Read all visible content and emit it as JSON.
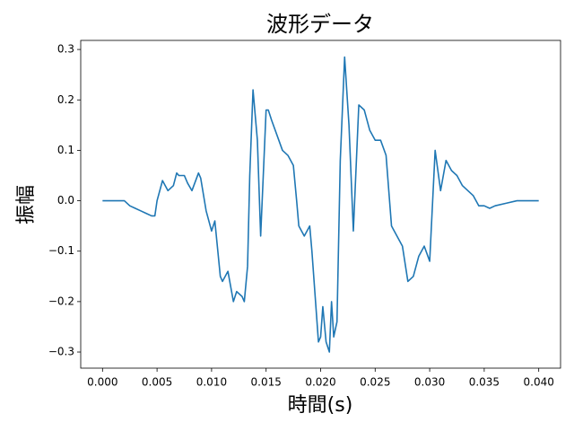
{
  "chart_data": {
    "type": "line",
    "title": "波形データ",
    "xlabel": "時間(s)",
    "ylabel": "振幅",
    "color": "#1f77b4",
    "x": [
      0.0,
      0.002,
      0.0025,
      0.003,
      0.0035,
      0.004,
      0.0045,
      0.0048,
      0.005,
      0.0055,
      0.006,
      0.0065,
      0.0068,
      0.007,
      0.0075,
      0.0078,
      0.0082,
      0.0088,
      0.009,
      0.0095,
      0.01,
      0.0103,
      0.0108,
      0.011,
      0.0115,
      0.012,
      0.0123,
      0.0128,
      0.013,
      0.0133,
      0.0135,
      0.0138,
      0.0142,
      0.0145,
      0.015,
      0.0152,
      0.0155,
      0.016,
      0.0165,
      0.017,
      0.0175,
      0.0178,
      0.018,
      0.0185,
      0.019,
      0.0192,
      0.0195,
      0.0198,
      0.02,
      0.0202,
      0.0205,
      0.0208,
      0.021,
      0.0212,
      0.0215,
      0.0218,
      0.0222,
      0.0226,
      0.023,
      0.0235,
      0.024,
      0.0245,
      0.025,
      0.0255,
      0.026,
      0.0265,
      0.027,
      0.0275,
      0.028,
      0.0285,
      0.029,
      0.0295,
      0.03,
      0.0305,
      0.031,
      0.0315,
      0.032,
      0.0325,
      0.033,
      0.0335,
      0.034,
      0.0345,
      0.035,
      0.0355,
      0.036,
      0.037,
      0.038,
      0.039,
      0.04
    ],
    "values": [
      0.0,
      0.0,
      -0.01,
      -0.015,
      -0.02,
      -0.025,
      -0.03,
      -0.03,
      0.0,
      0.04,
      0.02,
      0.03,
      0.055,
      0.05,
      0.05,
      0.035,
      0.02,
      0.055,
      0.045,
      -0.02,
      -0.06,
      -0.04,
      -0.15,
      -0.16,
      -0.14,
      -0.2,
      -0.18,
      -0.19,
      -0.2,
      -0.13,
      0.05,
      0.22,
      0.12,
      -0.07,
      0.18,
      0.18,
      0.16,
      0.13,
      0.1,
      0.09,
      0.07,
      0.0,
      -0.05,
      -0.07,
      -0.05,
      -0.1,
      -0.19,
      -0.28,
      -0.27,
      -0.21,
      -0.28,
      -0.3,
      -0.2,
      -0.27,
      -0.24,
      0.08,
      0.285,
      0.15,
      -0.06,
      0.19,
      0.18,
      0.14,
      0.12,
      0.12,
      0.09,
      -0.05,
      -0.07,
      -0.09,
      -0.16,
      -0.15,
      -0.11,
      -0.09,
      -0.12,
      0.1,
      0.02,
      0.08,
      0.06,
      0.05,
      0.03,
      0.02,
      0.01,
      -0.01,
      -0.01,
      -0.015,
      -0.01,
      -0.005,
      0.0,
      0.0,
      0.0
    ],
    "xlim": [
      -0.002,
      0.042
    ],
    "ylim": [
      -0.332,
      0.318
    ],
    "xticks": [
      {
        "value": 0.0,
        "label": "0.000"
      },
      {
        "value": 0.005,
        "label": "0.005"
      },
      {
        "value": 0.01,
        "label": "0.010"
      },
      {
        "value": 0.015,
        "label": "0.015"
      },
      {
        "value": 0.02,
        "label": "0.020"
      },
      {
        "value": 0.025,
        "label": "0.025"
      },
      {
        "value": 0.03,
        "label": "0.030"
      },
      {
        "value": 0.035,
        "label": "0.035"
      },
      {
        "value": 0.04,
        "label": "0.040"
      }
    ],
    "yticks": [
      {
        "value": -0.3,
        "label": "−0.3"
      },
      {
        "value": -0.2,
        "label": "−0.2"
      },
      {
        "value": -0.1,
        "label": "−0.1"
      },
      {
        "value": 0.0,
        "label": "0.0"
      },
      {
        "value": 0.1,
        "label": "0.1"
      },
      {
        "value": 0.2,
        "label": "0.2"
      },
      {
        "value": 0.3,
        "label": "0.3"
      }
    ],
    "grid": false
  }
}
